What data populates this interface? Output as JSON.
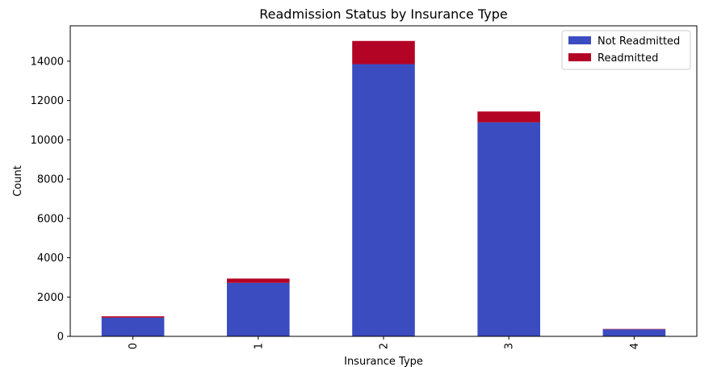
{
  "chart_data": {
    "type": "bar",
    "stacked": true,
    "title": "Readmission Status by Insurance Type",
    "xlabel": "Insurance Type",
    "ylabel": "Count",
    "categories": [
      "0",
      "1",
      "2",
      "3",
      "4"
    ],
    "series": [
      {
        "name": "Not Readmitted",
        "color": "#3b4cc0",
        "values": [
          950,
          2720,
          13850,
          10890,
          360
        ]
      },
      {
        "name": "Readmitted",
        "color": "#b40426",
        "values": [
          70,
          220,
          1180,
          550,
          20
        ]
      }
    ],
    "ylim": [
      0,
      15800
    ],
    "yticks": [
      0,
      2000,
      4000,
      6000,
      8000,
      10000,
      12000,
      14000
    ],
    "grid": false,
    "legend_position": "top-right"
  }
}
